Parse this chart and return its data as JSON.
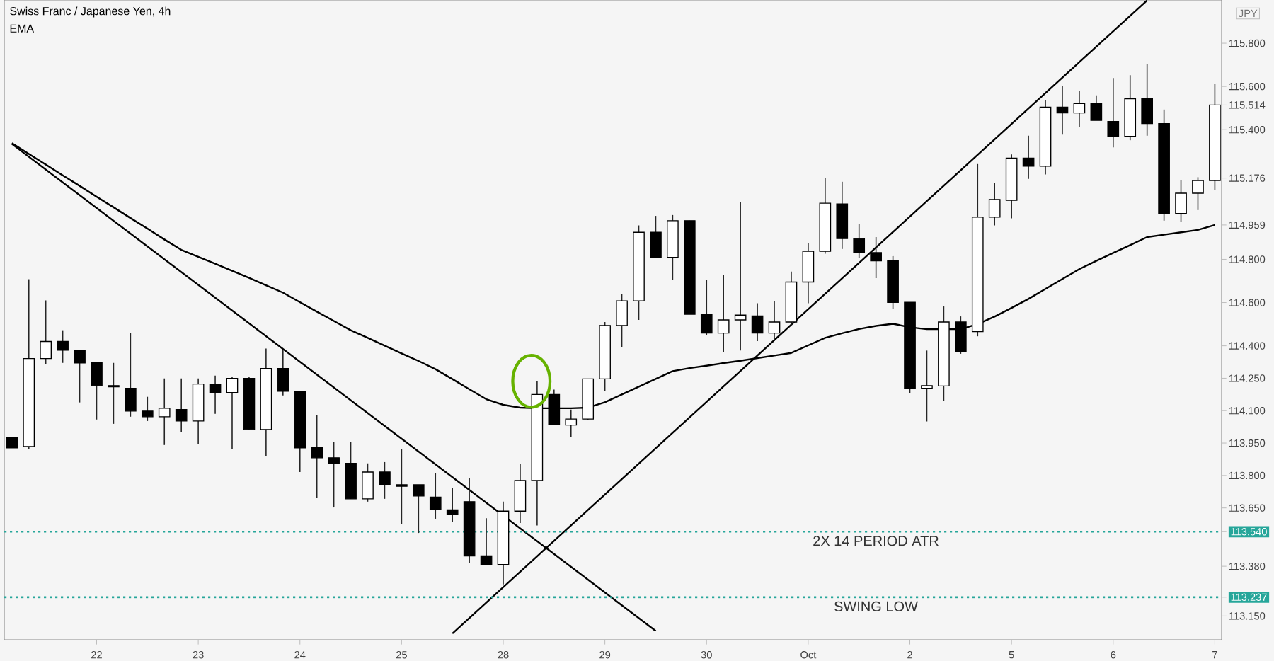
{
  "chart_data": {
    "type": "candlestick",
    "title": "Swiss Franc / Japanese Yen, 4h",
    "subtitle": "EMA",
    "ylabel": "JPY",
    "categories": [
      null,
      null,
      null,
      null,
      null,
      "22",
      null,
      null,
      null,
      null,
      null,
      "23",
      null,
      null,
      null,
      null,
      null,
      "24",
      null,
      null,
      null,
      null,
      null,
      "25",
      null,
      null,
      null,
      null,
      null,
      "28",
      null,
      null,
      null,
      null,
      null,
      "29",
      null,
      null,
      null,
      null,
      null,
      "30",
      null,
      null,
      null,
      null,
      null,
      "Oct",
      null,
      null,
      null,
      null,
      null,
      "2",
      null,
      null,
      null,
      null,
      null,
      "5",
      null,
      null,
      null,
      null,
      null,
      "6",
      null,
      null,
      null,
      null,
      null,
      "7"
    ],
    "ohlc": [
      [
        113.974,
        113.974,
        113.928,
        113.928
      ],
      [
        113.934,
        114.708,
        113.921,
        114.341
      ],
      [
        114.341,
        114.61,
        114.315,
        114.42
      ],
      [
        114.42,
        114.472,
        114.321,
        114.38
      ],
      [
        114.38,
        114.38,
        114.138,
        114.321
      ],
      [
        114.321,
        114.321,
        114.059,
        114.216
      ],
      [
        114.216,
        114.321,
        114.039,
        114.21
      ],
      [
        114.203,
        114.459,
        114.072,
        114.098
      ],
      [
        114.098,
        114.164,
        114.052,
        114.072
      ],
      [
        114.072,
        114.249,
        113.941,
        114.111
      ],
      [
        114.105,
        114.249,
        114.0,
        114.052
      ],
      [
        114.052,
        114.249,
        113.947,
        114.223
      ],
      [
        114.223,
        114.262,
        114.085,
        114.184
      ],
      [
        114.184,
        114.256,
        113.921,
        114.249
      ],
      [
        114.249,
        114.256,
        114.013,
        114.013
      ],
      [
        114.013,
        114.387,
        113.889,
        114.295
      ],
      [
        114.295,
        114.38,
        114.17,
        114.19
      ],
      [
        114.19,
        114.19,
        113.816,
        113.928
      ],
      [
        113.928,
        114.079,
        113.698,
        113.882
      ],
      [
        113.882,
        113.954,
        113.652,
        113.856
      ],
      [
        113.856,
        113.954,
        113.692,
        113.692
      ],
      [
        113.692,
        113.856,
        113.679,
        113.816
      ],
      [
        113.816,
        113.862,
        113.692,
        113.757
      ],
      [
        113.757,
        113.921,
        113.574,
        113.75
      ],
      [
        113.757,
        113.757,
        113.534,
        113.705
      ],
      [
        113.7,
        113.81,
        113.6,
        113.641
      ],
      [
        113.641,
        113.744,
        113.587,
        113.618
      ],
      [
        113.679,
        113.788,
        113.395,
        113.428
      ],
      [
        113.428,
        113.602,
        113.388,
        113.388
      ],
      [
        113.388,
        113.679,
        113.296,
        113.635
      ],
      [
        113.635,
        113.854,
        113.58,
        113.777
      ],
      [
        113.777,
        114.236,
        113.569,
        114.175
      ],
      [
        114.175,
        114.197,
        114.035,
        114.035
      ],
      [
        114.033,
        114.105,
        113.978,
        114.061
      ],
      [
        114.061,
        114.247,
        114.055,
        114.247
      ],
      [
        114.247,
        114.51,
        114.192,
        114.494
      ],
      [
        114.494,
        114.641,
        114.395,
        114.608
      ],
      [
        114.608,
        114.957,
        114.52,
        114.925
      ],
      [
        114.925,
        115.001,
        114.809,
        114.809
      ],
      [
        114.809,
        115.005,
        114.706,
        114.979
      ],
      [
        114.979,
        114.979,
        114.546,
        114.546
      ],
      [
        114.546,
        114.706,
        114.45,
        114.459
      ],
      [
        114.459,
        114.728,
        114.372,
        114.52
      ],
      [
        114.52,
        115.067,
        114.378,
        114.542
      ],
      [
        114.538,
        114.597,
        114.422,
        114.459
      ],
      [
        114.459,
        114.608,
        114.422,
        114.51
      ],
      [
        114.51,
        114.743,
        114.498,
        114.695
      ],
      [
        114.695,
        114.874,
        114.597,
        114.837
      ],
      [
        114.837,
        115.176,
        114.826,
        115.06
      ],
      [
        115.056,
        115.159,
        114.848,
        114.896
      ],
      [
        114.896,
        114.962,
        114.805,
        114.831
      ],
      [
        114.831,
        114.903,
        114.713,
        114.793
      ],
      [
        114.793,
        114.815,
        114.569,
        114.601
      ],
      [
        114.601,
        114.601,
        114.182,
        114.203
      ],
      [
        114.203,
        114.378,
        114.05,
        114.216
      ],
      [
        114.214,
        114.582,
        114.144,
        114.51
      ],
      [
        114.51,
        114.536,
        114.363,
        114.374
      ],
      [
        114.466,
        115.241,
        114.444,
        114.995
      ],
      [
        114.995,
        115.154,
        114.957,
        115.077
      ],
      [
        115.073,
        115.285,
        114.99,
        115.268
      ],
      [
        115.268,
        115.372,
        115.172,
        115.231
      ],
      [
        115.231,
        115.536,
        115.193,
        115.504
      ],
      [
        115.504,
        115.602,
        115.377,
        115.477
      ],
      [
        115.477,
        115.58,
        115.412,
        115.521
      ],
      [
        115.521,
        115.559,
        115.443,
        115.443
      ],
      [
        115.438,
        115.639,
        115.318,
        115.369
      ],
      [
        115.369,
        115.652,
        115.351,
        115.543
      ],
      [
        115.543,
        115.705,
        115.372,
        115.428
      ],
      [
        115.428,
        115.493,
        114.979,
        115.012
      ],
      [
        115.012,
        115.165,
        114.975,
        115.106
      ],
      [
        115.106,
        115.18,
        115.028,
        115.165
      ],
      [
        115.165,
        115.613,
        115.121,
        115.514
      ]
    ],
    "series": [
      {
        "type": "line",
        "color": "#000000",
        "values": [
          115.338,
          115.288,
          115.239,
          115.189,
          115.14,
          115.09,
          115.041,
          114.991,
          114.942,
          114.892,
          114.844,
          114.812,
          114.78,
          114.747,
          114.714,
          114.68,
          114.646,
          114.602,
          114.558,
          114.515,
          114.472,
          114.437,
          114.401,
          114.365,
          114.33,
          114.292,
          114.246,
          114.199,
          114.153,
          114.127,
          114.114,
          114.111,
          114.111,
          114.111,
          114.114,
          114.139,
          114.175,
          114.211,
          114.247,
          114.283,
          114.297,
          114.308,
          114.32,
          114.331,
          114.343,
          114.355,
          114.367,
          114.402,
          114.437,
          114.458,
          114.478,
          114.492,
          114.502,
          114.486,
          114.477,
          114.477,
          114.477,
          114.501,
          114.535,
          114.575,
          114.617,
          114.663,
          114.709,
          114.755,
          114.793,
          114.83,
          114.866,
          114.903,
          114.914,
          114.925,
          114.936,
          114.959
        ]
      },
      {
        "type": "line",
        "color": "#000000",
        "values": [
          115.334,
          null,
          null,
          null,
          null,
          null,
          null,
          null,
          null,
          null,
          null,
          null,
          null,
          null,
          null,
          null,
          null,
          null,
          null,
          null,
          null,
          null,
          null,
          null,
          null,
          null,
          null,
          null,
          null,
          null,
          null,
          null,
          null,
          null,
          null,
          null,
          null,
          null,
          113.081,
          null,
          null,
          null,
          null,
          null,
          null,
          null,
          null,
          null,
          null,
          null,
          null,
          null,
          null,
          null,
          null,
          null,
          null,
          null,
          null,
          null,
          null,
          null,
          null,
          null,
          null,
          null,
          null,
          null,
          null,
          null,
          null,
          null
        ]
      },
      {
        "type": "line",
        "color": "#000000",
        "values": [
          null,
          null,
          null,
          null,
          null,
          null,
          null,
          null,
          null,
          null,
          null,
          null,
          null,
          null,
          null,
          null,
          null,
          null,
          null,
          null,
          null,
          null,
          null,
          null,
          null,
          null,
          113.069,
          null,
          null,
          null,
          null,
          null,
          null,
          null,
          null,
          null,
          null,
          null,
          null,
          null,
          null,
          null,
          null,
          null,
          null,
          null,
          null,
          null,
          null,
          null,
          null,
          null,
          null,
          null,
          null,
          null,
          null,
          null,
          null,
          null,
          null,
          null,
          null,
          null,
          null,
          null,
          null,
          115.998,
          null,
          null,
          null,
          null
        ]
      }
    ],
    "ylim": [
      113.04,
      116.0
    ],
    "yticks": [
      {
        "value": 115.8,
        "label": "115.800"
      },
      {
        "value": 115.6,
        "label": "115.600"
      },
      {
        "value": 115.514,
        "label": "115.514"
      },
      {
        "value": 115.4,
        "label": "115.400"
      },
      {
        "value": 115.176,
        "label": "115.176"
      },
      {
        "value": 114.959,
        "label": "114.959"
      },
      {
        "value": 114.8,
        "label": "114.800"
      },
      {
        "value": 114.6,
        "label": "114.600"
      },
      {
        "value": 114.4,
        "label": "114.400"
      },
      {
        "value": 114.25,
        "label": "114.250"
      },
      {
        "value": 114.1,
        "label": "114.100"
      },
      {
        "value": 113.95,
        "label": "113.950"
      },
      {
        "value": 113.8,
        "label": "113.800"
      },
      {
        "value": 113.65,
        "label": "113.650"
      },
      {
        "value": 113.54,
        "label": "113.540"
      },
      {
        "value": 113.38,
        "label": "113.380"
      },
      {
        "value": 113.237,
        "label": "113.237"
      },
      {
        "value": 113.15,
        "label": "113.150"
      }
    ],
    "ref_lines": [
      {
        "axis": "y",
        "value": 113.54,
        "label": "2X 14 PERIOD ATR",
        "color": "#26a69a",
        "line_style": "dotted"
      },
      {
        "axis": "y",
        "value": 113.237,
        "label": "SWING LOW",
        "color": "#26a69a",
        "line_style": "dotted"
      }
    ]
  }
}
